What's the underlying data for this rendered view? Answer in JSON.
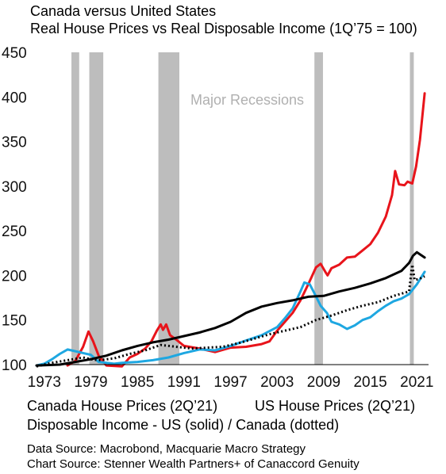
{
  "title": "Canada versus United States",
  "subtitle": "Real House Prices vs Real Disposable Income (1Q’75 = 100)",
  "recession_label": "Major Recessions",
  "legend": {
    "canada_house": "Canada House Prices (2Q’21)",
    "us_house": "US House Prices (2Q’21)",
    "disposable_income": "Disposable Income - US (solid) / Canada (dotted)"
  },
  "sources": {
    "data": "Data Source: Macrobond, Macquarie Macro Strategy",
    "chart": "Chart Source: Stenner Wealth Partners+ of Canaccord Genuity"
  },
  "colors": {
    "canada_house": "#e8141b",
    "us_house": "#1ea7e1",
    "disposable_income": "#000000",
    "recession": "#bdbdbd"
  },
  "chart_data": {
    "type": "line",
    "title": "Canada versus United States",
    "subtitle": "Real House Prices vs Real Disposable Income (1Q’75 = 100)",
    "x_ticks": [
      1973,
      1979,
      1985,
      1991,
      1997,
      2003,
      2009,
      2015,
      2021
    ],
    "y_ticks": [
      100,
      150,
      200,
      250,
      300,
      350,
      400,
      450
    ],
    "xlim": [
      1972,
      2022.5
    ],
    "ylim": [
      100,
      450
    ],
    "recessions": [
      [
        1976.5,
        1977.5
      ],
      [
        1978.8,
        1980.6
      ],
      [
        1987.7,
        1990.4
      ],
      [
        2007.8,
        2008.9
      ],
      [
        2020.1,
        2020.6
      ]
    ],
    "series": [
      {
        "name": "Canada House Prices (2Q’21)",
        "color": "#e8141b",
        "style": "solid",
        "points": [
          [
            1976,
            99
          ],
          [
            1977,
            104
          ],
          [
            1978,
            120
          ],
          [
            1978.7,
            137
          ],
          [
            1979.3,
            126
          ],
          [
            1980,
            110
          ],
          [
            1981,
            99
          ],
          [
            1983,
            98
          ],
          [
            1984,
            108
          ],
          [
            1985,
            112
          ],
          [
            1986,
            118
          ],
          [
            1986.8,
            126
          ],
          [
            1987.5,
            138
          ],
          [
            1988,
            145
          ],
          [
            1988.3,
            139
          ],
          [
            1988.7,
            145
          ],
          [
            1989.2,
            133
          ],
          [
            1990,
            128
          ],
          [
            1991,
            121
          ],
          [
            1993,
            118
          ],
          [
            1995,
            114
          ],
          [
            1997,
            119
          ],
          [
            1999,
            120
          ],
          [
            2001,
            123
          ],
          [
            2002,
            126
          ],
          [
            2003,
            138
          ],
          [
            2004,
            148
          ],
          [
            2005,
            158
          ],
          [
            2006,
            172
          ],
          [
            2007,
            190
          ],
          [
            2008,
            209
          ],
          [
            2008.6,
            213
          ],
          [
            2009.2,
            204
          ],
          [
            2009.5,
            200
          ],
          [
            2010,
            208
          ],
          [
            2011,
            212
          ],
          [
            2012,
            220
          ],
          [
            2013,
            221
          ],
          [
            2014,
            228
          ],
          [
            2015,
            235
          ],
          [
            2016,
            248
          ],
          [
            2017,
            266
          ],
          [
            2017.8,
            290
          ],
          [
            2018.2,
            317
          ],
          [
            2018.7,
            302
          ],
          [
            2019.4,
            301
          ],
          [
            2019.8,
            305
          ],
          [
            2020.4,
            303
          ],
          [
            2020.9,
            322
          ],
          [
            2021.4,
            352
          ],
          [
            2022,
            404
          ]
        ]
      },
      {
        "name": "US House Prices (2Q’21)",
        "color": "#1ea7e1",
        "style": "solid",
        "points": [
          [
            1972,
            99
          ],
          [
            1973,
            101
          ],
          [
            1974,
            106
          ],
          [
            1975,
            112
          ],
          [
            1976,
            117
          ],
          [
            1977,
            115
          ],
          [
            1978,
            113
          ],
          [
            1979,
            111
          ],
          [
            1980,
            103
          ],
          [
            1982,
            101
          ],
          [
            1983,
            102
          ],
          [
            1985,
            103
          ],
          [
            1987,
            105
          ],
          [
            1989,
            108
          ],
          [
            1991,
            113
          ],
          [
            1993,
            117
          ],
          [
            1995,
            116
          ],
          [
            1997,
            121
          ],
          [
            1999,
            127
          ],
          [
            2001,
            133
          ],
          [
            2003,
            142
          ],
          [
            2004,
            152
          ],
          [
            2005,
            163
          ],
          [
            2006,
            182
          ],
          [
            2006.5,
            192
          ],
          [
            2007.2,
            190
          ],
          [
            2007.8,
            180
          ],
          [
            2008.6,
            166
          ],
          [
            2009.4,
            158
          ],
          [
            2010,
            148
          ],
          [
            2011,
            145
          ],
          [
            2012,
            140
          ],
          [
            2013,
            144
          ],
          [
            2014,
            150
          ],
          [
            2015,
            153
          ],
          [
            2016,
            160
          ],
          [
            2017,
            166
          ],
          [
            2018,
            171
          ],
          [
            2019,
            174
          ],
          [
            2020,
            179
          ],
          [
            2021,
            190
          ],
          [
            2022,
            204
          ]
        ]
      },
      {
        "name": "Disposable Income - US",
        "color": "#000000",
        "style": "solid",
        "points": [
          [
            1972,
            99
          ],
          [
            1975,
            100
          ],
          [
            1977,
            103
          ],
          [
            1979,
            106
          ],
          [
            1981,
            110
          ],
          [
            1983,
            116
          ],
          [
            1985,
            121
          ],
          [
            1987,
            125
          ],
          [
            1989,
            128
          ],
          [
            1991,
            132
          ],
          [
            1993,
            136
          ],
          [
            1995,
            141
          ],
          [
            1997,
            148
          ],
          [
            1999,
            158
          ],
          [
            2001,
            165
          ],
          [
            2003,
            169
          ],
          [
            2005,
            172
          ],
          [
            2007,
            176
          ],
          [
            2009,
            177
          ],
          [
            2011,
            182
          ],
          [
            2013,
            186
          ],
          [
            2015,
            191
          ],
          [
            2017,
            197
          ],
          [
            2019,
            205
          ],
          [
            2020,
            214
          ],
          [
            2020.5,
            222
          ],
          [
            2021,
            226
          ],
          [
            2022,
            220
          ]
        ]
      },
      {
        "name": "Disposable Income - Canada",
        "color": "#000000",
        "style": "dotted",
        "points": [
          [
            1972,
            98
          ],
          [
            1974,
            102
          ],
          [
            1976,
            105
          ],
          [
            1978,
            108
          ],
          [
            1979,
            106
          ],
          [
            1980,
            105
          ],
          [
            1982,
            107
          ],
          [
            1984,
            112
          ],
          [
            1986,
            116
          ],
          [
            1988,
            122
          ],
          [
            1990,
            120
          ],
          [
            1992,
            118
          ],
          [
            1994,
            119
          ],
          [
            1996,
            120
          ],
          [
            1998,
            124
          ],
          [
            2000,
            129
          ],
          [
            2002,
            134
          ],
          [
            2004,
            138
          ],
          [
            2006,
            142
          ],
          [
            2008,
            150
          ],
          [
            2010,
            155
          ],
          [
            2012,
            161
          ],
          [
            2014,
            166
          ],
          [
            2016,
            170
          ],
          [
            2018,
            177
          ],
          [
            2020,
            182
          ],
          [
            2020.4,
            212
          ],
          [
            2020.7,
            195
          ],
          [
            2021.3,
            196
          ],
          [
            2022,
            199
          ]
        ]
      }
    ]
  }
}
